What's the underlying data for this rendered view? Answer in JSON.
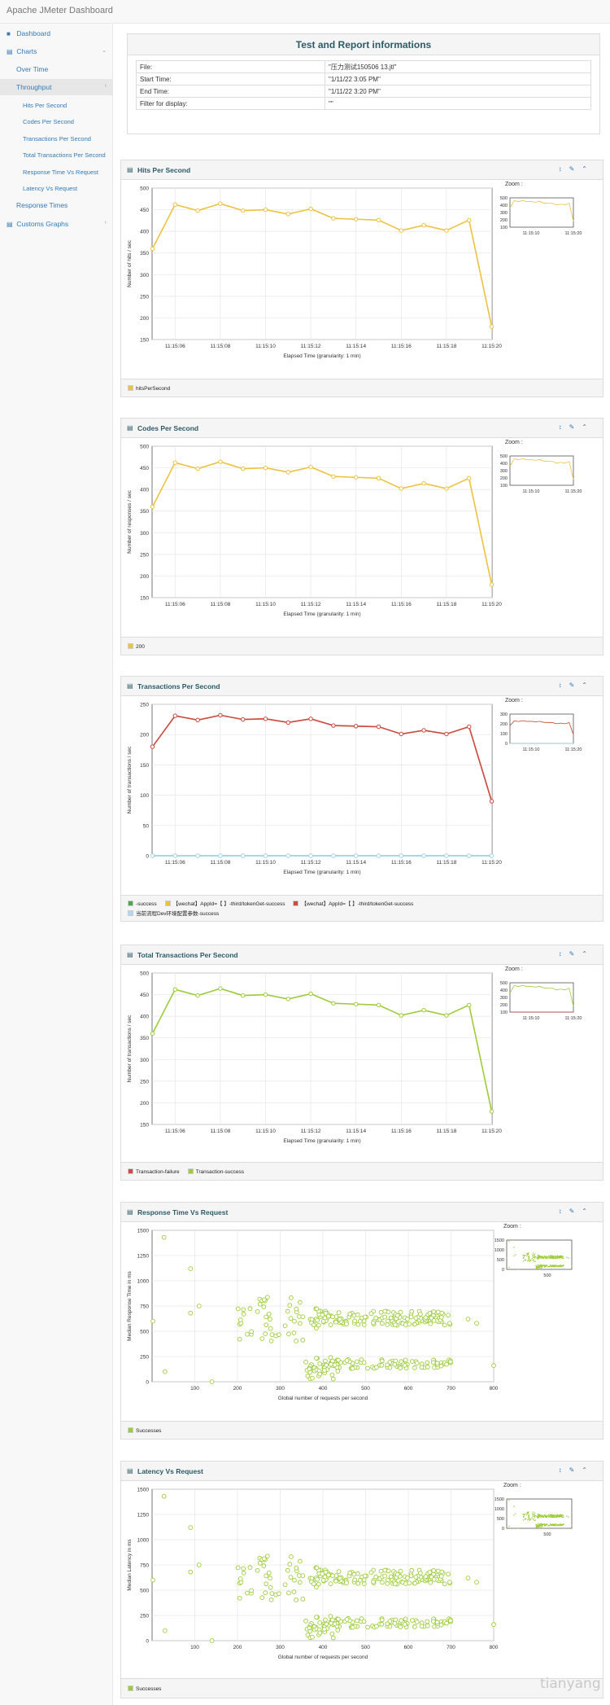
{
  "app": {
    "brand": "Apache JMeter Dashboard",
    "watermark": "tianyang"
  },
  "sidebar": {
    "dashboard": "Dashboard",
    "charts": "Charts",
    "over_time": "Over Time",
    "throughput": "Throughput",
    "hits": "Hits Per Second",
    "codes": "Codes Per Second",
    "transactions": "Transactions Per Second",
    "total_transactions": "Total Transactions Per Second",
    "response_time_vs_request": "Response Time Vs Request",
    "latency_vs_request": "Latency Vs Request",
    "response_times": "Response Times",
    "customs_graphs": "Customs Graphs"
  },
  "info": {
    "title": "Test and Report informations",
    "rows": [
      {
        "key": "File:",
        "value": "\"压力测试150506 13.jtl\""
      },
      {
        "key": "Start Time:",
        "value": "\"1/11/22 3:05 PM\""
      },
      {
        "key": "End Time:",
        "value": "\"1/11/22 3:20 PM\""
      },
      {
        "key": "Filter for display:",
        "value": "\"\""
      }
    ]
  },
  "zoom_label": "Zoom :",
  "colors": {
    "orange": "#edc240",
    "red": "#cb4b4b",
    "green": "#4da74d",
    "lime": "#9ccc3a",
    "blue": "#afd8f8"
  },
  "chart_data": [
    {
      "id": "hits",
      "type": "line",
      "title": "Hits Per Second",
      "xlabel": "Elapsed Time (granularity: 1 min)",
      "ylabel": "Number of hits / sec",
      "ylim": [
        150,
        500
      ],
      "yticks": [
        150,
        200,
        250,
        300,
        350,
        400,
        450,
        500
      ],
      "x": [
        "11:15:05",
        "11:15:06",
        "11:15:07",
        "11:15:08",
        "11:15:09",
        "11:15:10",
        "11:15:11",
        "11:15:12",
        "11:15:13",
        "11:15:14",
        "11:15:15",
        "11:15:16",
        "11:15:17",
        "11:15:18",
        "11:15:19",
        "11:15:20"
      ],
      "xticks": [
        "11:15:06",
        "11:15:08",
        "11:15:10",
        "11:15:12",
        "11:15:14",
        "11:15:16",
        "11:15:18",
        "11:15:20"
      ],
      "series": [
        {
          "name": "hitsPerSecond",
          "color": "#edc240",
          "values": [
            360,
            462,
            448,
            464,
            448,
            450,
            440,
            452,
            430,
            428,
            426,
            402,
            414,
            402,
            426,
            180
          ]
        }
      ],
      "zoom_yticks": [
        100,
        200,
        300,
        400,
        500
      ],
      "zoom_xticks": [
        "11:15:10",
        "11:15:20"
      ]
    },
    {
      "id": "codes",
      "type": "line",
      "title": "Codes Per Second",
      "xlabel": "Elapsed Time (granularity: 1 min)",
      "ylabel": "Number of responses / sec",
      "ylim": [
        150,
        500
      ],
      "yticks": [
        150,
        200,
        250,
        300,
        350,
        400,
        450,
        500
      ],
      "x": [
        "11:15:05",
        "11:15:06",
        "11:15:07",
        "11:15:08",
        "11:15:09",
        "11:15:10",
        "11:15:11",
        "11:15:12",
        "11:15:13",
        "11:15:14",
        "11:15:15",
        "11:15:16",
        "11:15:17",
        "11:15:18",
        "11:15:19",
        "11:15:20"
      ],
      "xticks": [
        "11:15:06",
        "11:15:08",
        "11:15:10",
        "11:15:12",
        "11:15:14",
        "11:15:16",
        "11:15:18",
        "11:15:20"
      ],
      "series": [
        {
          "name": "200",
          "color": "#edc240",
          "values": [
            360,
            462,
            448,
            464,
            448,
            450,
            440,
            452,
            430,
            428,
            426,
            402,
            414,
            402,
            426,
            180
          ]
        }
      ],
      "zoom_yticks": [
        100,
        200,
        300,
        400,
        500
      ],
      "zoom_xticks": [
        "11:15:10",
        "11:15:20"
      ]
    },
    {
      "id": "transactions",
      "type": "line",
      "title": "Transactions Per Second",
      "xlabel": "Elapsed Time (granularity: 1 min)",
      "ylabel": "Number of transactions / sec",
      "ylim": [
        0,
        250
      ],
      "yticks": [
        0,
        50,
        100,
        150,
        200,
        250
      ],
      "x": [
        "11:15:05",
        "11:15:06",
        "11:15:07",
        "11:15:08",
        "11:15:09",
        "11:15:10",
        "11:15:11",
        "11:15:12",
        "11:15:13",
        "11:15:14",
        "11:15:15",
        "11:15:16",
        "11:15:17",
        "11:15:18",
        "11:15:19",
        "11:15:20"
      ],
      "xticks": [
        "11:15:06",
        "11:15:08",
        "11:15:10",
        "11:15:12",
        "11:15:14",
        "11:15:16",
        "11:15:18",
        "11:15:20"
      ],
      "series": [
        {
          "name": "-success",
          "color": "#4da74d",
          "values": [
            0,
            0,
            0,
            0,
            0,
            0,
            0,
            0,
            0,
            0,
            0,
            0,
            0,
            0,
            0,
            0
          ]
        },
        {
          "name": "【wechat】AppId=【 】-third/tokenGet-success",
          "color": "#edc240",
          "values": [
            180,
            231,
            224,
            232,
            225,
            226,
            220,
            226,
            215,
            214,
            213,
            201,
            207,
            201,
            213,
            90
          ]
        },
        {
          "name": "【wechat】AppId=【 】-third/tokenGet-success",
          "color": "#cb4b4b",
          "values": [
            180,
            231,
            224,
            232,
            225,
            226,
            220,
            226,
            215,
            214,
            213,
            201,
            207,
            201,
            213,
            90
          ]
        },
        {
          "name": "当前流程Dev环境配置参数-success",
          "color": "#afd8f8",
          "values": [
            0,
            0,
            0,
            0,
            0,
            0,
            0,
            0,
            0,
            0,
            0,
            0,
            0,
            0,
            0,
            0
          ]
        }
      ],
      "zoom_yticks": [
        0,
        100,
        200,
        300
      ],
      "zoom_xticks": [
        "11:15:10",
        "11:15:20"
      ]
    },
    {
      "id": "total",
      "type": "line",
      "title": "Total Transactions Per Second",
      "xlabel": "Elapsed Time (granularity: 1 min)",
      "ylabel": "Number of transactions / sec",
      "ylim": [
        150,
        500
      ],
      "yticks": [
        150,
        200,
        250,
        300,
        350,
        400,
        450,
        500
      ],
      "x": [
        "11:15:05",
        "11:15:06",
        "11:15:07",
        "11:15:08",
        "11:15:09",
        "11:15:10",
        "11:15:11",
        "11:15:12",
        "11:15:13",
        "11:15:14",
        "11:15:15",
        "11:15:16",
        "11:15:17",
        "11:15:18",
        "11:15:19",
        "11:15:20"
      ],
      "xticks": [
        "11:15:06",
        "11:15:08",
        "11:15:10",
        "11:15:12",
        "11:15:14",
        "11:15:16",
        "11:15:18",
        "11:15:20"
      ],
      "series": [
        {
          "name": "Transaction-failure",
          "color": "#cb4b4b",
          "values": [
            0,
            0,
            0,
            0,
            0,
            0,
            0,
            0,
            0,
            0,
            0,
            0,
            0,
            0,
            0,
            0
          ]
        },
        {
          "name": "Transaction-success",
          "color": "#9ccc3a",
          "values": [
            360,
            462,
            448,
            464,
            448,
            450,
            440,
            452,
            430,
            428,
            426,
            402,
            414,
            402,
            426,
            180
          ]
        }
      ],
      "zoom_yticks": [
        100,
        200,
        300,
        400,
        500
      ],
      "zoom_xticks": [
        "11:15:10",
        "11:15:20"
      ]
    },
    {
      "id": "rtvr",
      "type": "scatter",
      "title": "Response Time Vs Request",
      "xlabel": "Global number of requests per second",
      "ylabel": "Median Response Time in ms",
      "xlim": [
        0,
        800
      ],
      "ylim": [
        0,
        1500
      ],
      "xticks": [
        100,
        200,
        300,
        400,
        500,
        600,
        700,
        800
      ],
      "yticks": [
        0,
        250,
        500,
        750,
        1000,
        1250,
        1500
      ],
      "series": [
        {
          "name": "Successes",
          "color": "#9ccc3a"
        }
      ],
      "zoom_yticks": [
        0,
        500,
        1000,
        1500
      ],
      "zoom_xticks": [
        "500"
      ]
    },
    {
      "id": "lvr",
      "type": "scatter",
      "title": "Latency Vs Request",
      "xlabel": "Global number of requests per second",
      "ylabel": "Median Latency in ms",
      "xlim": [
        0,
        800
      ],
      "ylim": [
        0,
        1500
      ],
      "xticks": [
        100,
        200,
        300,
        400,
        500,
        600,
        700,
        800
      ],
      "yticks": [
        0,
        250,
        500,
        750,
        1000,
        1250,
        1500
      ],
      "series": [
        {
          "name": "Successes",
          "color": "#9ccc3a"
        }
      ],
      "zoom_yticks": [
        0,
        500,
        1000,
        1500
      ],
      "zoom_xticks": [
        "500"
      ]
    }
  ]
}
